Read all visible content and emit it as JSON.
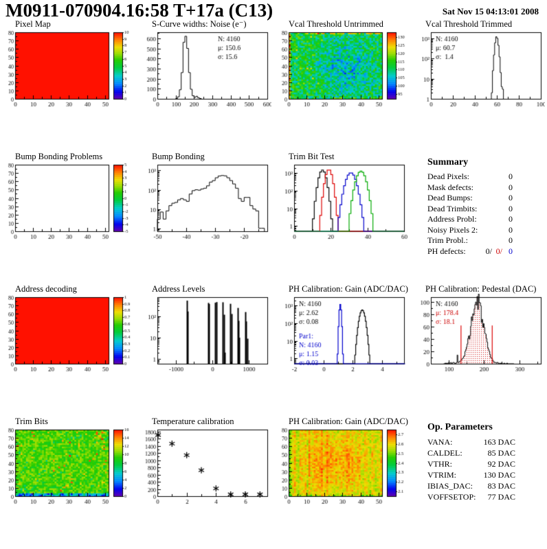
{
  "header": {
    "title": "M0911-070904.16:58 T+17a (C13)",
    "date": "Sat Nov 15 04:13:01 2008"
  },
  "colors": {
    "accent_red": "#cc0000",
    "accent_blue": "#0000cc",
    "frame": "#000000"
  },
  "summary": {
    "title": "Summary",
    "rows": [
      {
        "label": "Dead Pixels:",
        "value": "0"
      },
      {
        "label": "Mask defects:",
        "value": "0"
      },
      {
        "label": "Dead Bumps:",
        "value": "0"
      },
      {
        "label": "Dead Trimbits:",
        "value": "0"
      },
      {
        "label": "Address Probl:",
        "value": "0"
      },
      {
        "label": "Noisy Pixels 2:",
        "value": "0"
      },
      {
        "label": "Trim Probl.:",
        "value": "0"
      }
    ],
    "ph_defects": {
      "label": "PH defects:",
      "values": [
        "0/",
        "0/",
        "0"
      ],
      "colors": [
        "#000000",
        "#cc0000",
        "#0000cc"
      ]
    }
  },
  "op_parameters": {
    "title": "Op. Parameters",
    "rows": [
      {
        "label": "VANA:",
        "value": "163 DAC"
      },
      {
        "label": "CALDEL:",
        "value": "85 DAC"
      },
      {
        "label": "VTHR:",
        "value": "92 DAC"
      },
      {
        "label": "VTRIM:",
        "value": "130 DAC"
      },
      {
        "label": "IBIAS_DAC:",
        "value": "83 DAC"
      },
      {
        "label": "VOFFSETOP:",
        "value": "77 DAC"
      }
    ]
  },
  "chart_data": [
    {
      "panel": "pixel-map",
      "title": "Pixel Map",
      "type": "heatmap",
      "fill": "uniform",
      "uniform_value": 10,
      "zmin": 0,
      "zmax": 10,
      "colorbar_ticks": [
        10,
        9,
        8,
        7,
        6,
        5,
        4,
        3,
        2,
        1,
        0
      ],
      "xlim": [
        0,
        52
      ],
      "ylim": [
        0,
        80
      ],
      "xticks": [
        0,
        10,
        20,
        30,
        40,
        50
      ],
      "yticks": [
        0,
        10,
        20,
        30,
        40,
        50,
        60,
        70,
        80
      ]
    },
    {
      "panel": "scurve-noise",
      "title": "S-Curve widths: Noise (e⁻)",
      "type": "hist",
      "scale": "lin",
      "xlim": [
        0,
        600
      ],
      "ylim": [
        0,
        660
      ],
      "xticks": [
        0,
        100,
        200,
        300,
        400,
        500,
        600
      ],
      "yticks": [
        0,
        100,
        200,
        300,
        400,
        500,
        600
      ],
      "bin_start": 100,
      "bin_width": 10,
      "counts": [
        3,
        20,
        90,
        260,
        560,
        620,
        500,
        260,
        95,
        30,
        15,
        25,
        10,
        3
      ],
      "stats": [
        {
          "pos": "tr",
          "color": "#000000",
          "lines": [
            "N: 4160",
            "μ: 150.6",
            "σ: 15.6"
          ]
        }
      ]
    },
    {
      "panel": "vcal-threshold-untrimmed",
      "title": "Vcal Threshold Untrimmed",
      "type": "heatmap",
      "fill": "noise",
      "pattern": "vcal",
      "noise_mean": 112,
      "noise_spread": 7,
      "seed": 11,
      "zmin": 92,
      "zmax": 133,
      "colorbar_ticks": [
        130,
        125,
        120,
        115,
        110,
        105,
        100,
        95
      ],
      "xlim": [
        0,
        52
      ],
      "ylim": [
        0,
        80
      ],
      "xticks": [
        0,
        10,
        20,
        30,
        40,
        50
      ],
      "yticks": [
        0,
        10,
        20,
        30,
        40,
        50,
        60,
        70,
        80
      ]
    },
    {
      "panel": "vcal-threshold-trimmed",
      "title": "Vcal Threshold Trimmed",
      "type": "hist",
      "scale": "log",
      "xlim": [
        0,
        100
      ],
      "ylim": [
        1,
        2000
      ],
      "xticks": [
        0,
        20,
        40,
        60,
        80,
        100
      ],
      "bin_start": 55,
      "bin_width": 1,
      "counts": [
        2,
        25,
        150,
        600,
        1200,
        1000,
        450,
        120,
        20,
        4,
        3
      ],
      "stats": [
        {
          "pos": "tl",
          "color": "#000000",
          "lines": [
            "N: 4160",
            "μ: 60.7",
            "σ:  1.4"
          ]
        }
      ]
    },
    {
      "panel": "bump-bonding-problems",
      "title": "Bump Bonding Problems",
      "type": "heatmap",
      "fill": "empty",
      "zmin": -5,
      "zmax": 5,
      "colorbar_ticks": [
        5,
        4,
        3,
        2,
        1,
        0,
        -1,
        -2,
        -3,
        -4,
        -5
      ],
      "xlim": [
        0,
        52
      ],
      "ylim": [
        0,
        80
      ],
      "xticks": [
        0,
        10,
        20,
        30,
        40,
        50
      ],
      "yticks": [
        0,
        10,
        20,
        30,
        40,
        50,
        60,
        70,
        80
      ]
    },
    {
      "panel": "bump-bonding",
      "title": "Bump Bonding",
      "type": "hist",
      "scale": "log",
      "xlim": [
        -50,
        -12
      ],
      "ylim": [
        0.7,
        2000
      ],
      "xticks": [
        -50,
        -40,
        -30,
        -20
      ],
      "bin_start": -50,
      "bin_width": 1,
      "counts": [
        3,
        7,
        3,
        8,
        15,
        20,
        22,
        30,
        35,
        30,
        25,
        60,
        90,
        100,
        95,
        110,
        120,
        160,
        250,
        300,
        420,
        520,
        550,
        530,
        420,
        300,
        200,
        120,
        35,
        25,
        40,
        40,
        15,
        10,
        8,
        1,
        1
      ]
    },
    {
      "panel": "trim-bit-test",
      "title": "Trim Bit Test",
      "type": "multihist",
      "scale": "log",
      "xlim": [
        0,
        60
      ],
      "ylim": [
        0.5,
        3000
      ],
      "xticks": [
        0,
        20,
        40,
        60
      ],
      "bin_width": 1,
      "series": [
        {
          "name": "trim-bits-14",
          "color": "#000000",
          "mean": 15.5,
          "sigma": 1.4,
          "peak": 1500
        },
        {
          "name": "trim-bits-13",
          "color": "#dd0000",
          "mean": 19.0,
          "sigma": 1.3,
          "peak": 1600
        },
        {
          "name": "trim-bits-11",
          "color": "#0000cc",
          "mean": 31.0,
          "sigma": 1.9,
          "peak": 1050
        },
        {
          "name": "trim-bits-7",
          "color": "#00aa00",
          "mean": 36.5,
          "sigma": 1.8,
          "peak": 1300
        }
      ]
    },
    {
      "panel": "address-decoding",
      "title": "Address decoding",
      "type": "heatmap",
      "fill": "uniform",
      "uniform_value": 1,
      "zmin": 0,
      "zmax": 1,
      "colorbar_ticks": [
        1,
        0.9,
        0.8,
        0.7,
        0.6,
        0.5,
        0.4,
        0.3,
        0.2,
        0.1,
        0
      ],
      "xlim": [
        0,
        52
      ],
      "ylim": [
        0,
        80
      ],
      "xticks": [
        0,
        10,
        20,
        30,
        40,
        50
      ],
      "yticks": [
        0,
        10,
        20,
        30,
        40,
        50,
        60,
        70,
        80
      ]
    },
    {
      "panel": "address-levels",
      "title": "Address Levels",
      "type": "spikes",
      "scale": "log",
      "xlim": [
        -1500,
        1500
      ],
      "ylim": [
        0.6,
        800
      ],
      "xticks": [
        -1000,
        0,
        1000
      ],
      "spikes": [
        [
          -700,
          550
        ],
        [
          -670,
          170
        ],
        [
          -120,
          430
        ],
        [
          -95,
          380
        ],
        [
          80,
          440
        ],
        [
          110,
          470
        ],
        [
          290,
          460
        ],
        [
          320,
          120
        ],
        [
          335,
          2
        ],
        [
          490,
          390
        ],
        [
          520,
          130
        ],
        [
          690,
          250
        ],
        [
          715,
          62
        ],
        [
          735,
          10
        ],
        [
          895,
          160
        ],
        [
          925,
          58
        ],
        [
          950,
          9
        ]
      ]
    },
    {
      "panel": "ph-calibration-gain-hist",
      "title": "PH Calibration: Gain (ADC/DAC)",
      "type": "multihist",
      "scale": "log",
      "xlim": [
        -2,
        5.5
      ],
      "ylim": [
        0.5,
        3000
      ],
      "xticks": [
        -2,
        0,
        2,
        4
      ],
      "bin_width": 0.06,
      "series": [
        {
          "name": "gain",
          "color": "#000000",
          "mean": 2.65,
          "sigma": 0.14,
          "peak": 560
        },
        {
          "name": "par1",
          "color": "#0000cc",
          "mean": 1.15,
          "sigma": 0.05,
          "peak": 1150
        }
      ],
      "stats": [
        {
          "pos": "tl",
          "color": "#000000",
          "lines": [
            "N: 4160",
            "μ: 2.62",
            "σ: 0.08"
          ]
        },
        {
          "pos": "ml",
          "color": "#0000cc",
          "lines": [
            "Par1:",
            "N: 4160",
            "μ: 1.15",
            "σ: 0.03"
          ]
        }
      ]
    },
    {
      "panel": "ph-calibration-pedestal",
      "title": "PH Calibration: Pedestal (DAC)",
      "type": "hist",
      "scale": "lin",
      "xlim": [
        50,
        360
      ],
      "ylim": [
        0,
        108
      ],
      "xticks": [
        100,
        200,
        300
      ],
      "yticks": [
        0,
        20,
        40,
        60,
        80,
        100
      ],
      "gauss": {
        "mean": 181,
        "sigma": 18,
        "peak": 100,
        "bin_width": 2,
        "range": [
          86,
          284
        ]
      },
      "fill_dots": "#cc0000",
      "red_lines": {
        "x": [
          135,
          223
        ],
        "height": 62
      },
      "stats": [
        {
          "pos": "tl",
          "lines": [
            {
              "text": "N: 4160",
              "color": "#000000"
            },
            {
              "text": "μ: 178.4",
              "color": "#cc0000"
            },
            {
              "text": "σ: 18.1",
              "color": "#cc0000"
            }
          ]
        }
      ]
    },
    {
      "panel": "trim-bits",
      "title": "Trim Bits",
      "type": "heatmap",
      "fill": "noise",
      "pattern": "trimbits",
      "noise_mean": 9.8,
      "noise_spread": 1.4,
      "seed": 23,
      "zmin": 0,
      "zmax": 16,
      "colorbar_ticks": [
        16,
        14,
        12,
        10,
        8,
        6,
        4,
        2,
        0
      ],
      "xlim": [
        0,
        52
      ],
      "ylim": [
        0,
        80
      ],
      "xticks": [
        0,
        10,
        20,
        30,
        40,
        50
      ],
      "yticks": [
        0,
        10,
        20,
        30,
        40,
        50,
        60,
        70,
        80
      ]
    },
    {
      "panel": "temperature-calibration",
      "title": "Temperature calibration",
      "type": "scatter",
      "marker": "asterisk",
      "xlim": [
        0,
        7.5
      ],
      "ylim": [
        0,
        1850
      ],
      "xticks": [
        0,
        2,
        4,
        6
      ],
      "yticks": [
        0,
        200,
        400,
        600,
        800,
        1000,
        1200,
        1400,
        1600,
        1800
      ],
      "points": [
        [
          0.05,
          1700
        ],
        [
          1,
          1460
        ],
        [
          2,
          1140
        ],
        [
          3,
          720
        ],
        [
          4,
          215
        ],
        [
          5,
          50
        ],
        [
          6,
          50
        ],
        [
          7,
          50
        ]
      ]
    },
    {
      "panel": "ph-calibration-gain-map",
      "title": "PH Calibration: Gain (ADC/DAC)",
      "type": "heatmap",
      "fill": "noise",
      "pattern": "gainmap",
      "noise_mean": 2.62,
      "noise_spread": 0.055,
      "seed": 5,
      "zmin": 2.05,
      "zmax": 2.75,
      "colorbar_ticks": [
        2.7,
        2.6,
        2.5,
        2.4,
        2.3,
        2.2,
        2.1
      ],
      "xlim": [
        0,
        52
      ],
      "ylim": [
        0,
        80
      ],
      "xticks": [
        0,
        10,
        20,
        30,
        40,
        50
      ],
      "yticks": [
        0,
        10,
        20,
        30,
        40,
        50,
        60,
        70,
        80
      ]
    }
  ]
}
